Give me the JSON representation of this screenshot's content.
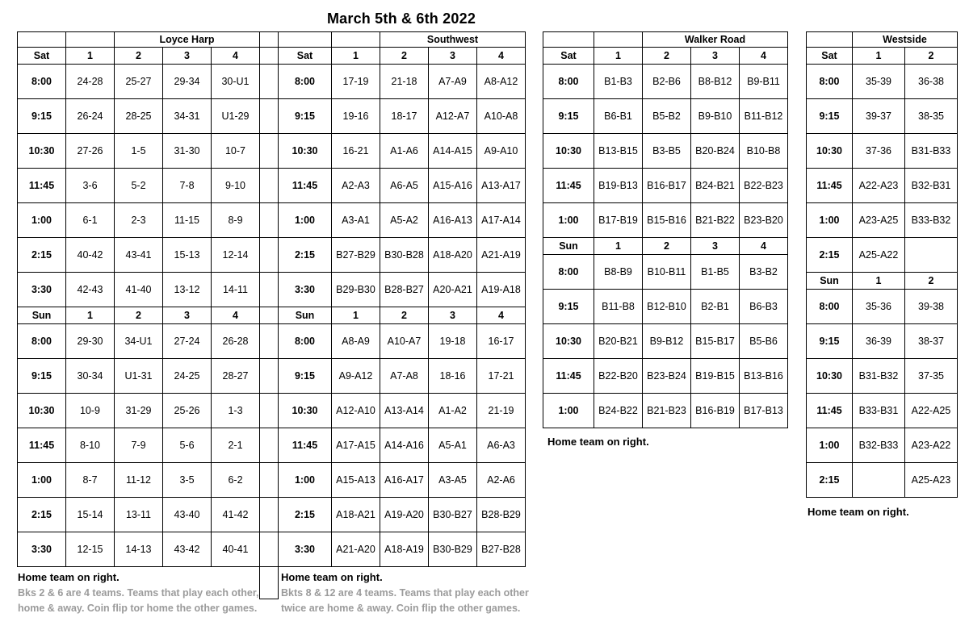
{
  "title": "March 5th & 6th 2022",
  "colors": {
    "background": "#ffffff",
    "border": "#000000",
    "text": "#000000",
    "gray_text": "#9b9b9b"
  },
  "venues": [
    {
      "name": "Loyce Harp",
      "courts": [
        "1",
        "2",
        "3",
        "4"
      ],
      "sections": [
        {
          "day": "Sat",
          "rows": [
            {
              "time": "8:00",
              "cells": [
                "24-28",
                "25-27",
                "29-34",
                "30-U1"
              ],
              "gray": [
                0,
                0,
                0,
                0
              ]
            },
            {
              "time": "9:15",
              "cells": [
                "26-24",
                "28-25",
                "34-31",
                "U1-29"
              ],
              "gray": [
                0,
                0,
                0,
                0
              ]
            },
            {
              "time": "10:30",
              "cells": [
                "27-26",
                "1-5",
                "31-30",
                "10-7"
              ],
              "gray": [
                0,
                0,
                0,
                1
              ]
            },
            {
              "time": "11:45",
              "cells": [
                "3-6",
                "5-2",
                "7-8",
                "9-10"
              ],
              "gray": [
                0,
                0,
                1,
                1
              ]
            },
            {
              "time": "1:00",
              "cells": [
                "6-1",
                "2-3",
                "11-15",
                "8-9"
              ],
              "gray": [
                0,
                0,
                0,
                1
              ]
            },
            {
              "time": "2:15",
              "cells": [
                "40-42",
                "43-41",
                "15-13",
                "12-14"
              ],
              "gray": [
                1,
                1,
                0,
                0
              ]
            },
            {
              "time": "3:30",
              "cells": [
                "42-43",
                "41-40",
                "13-12",
                "14-11"
              ],
              "gray": [
                1,
                1,
                0,
                0
              ]
            }
          ]
        },
        {
          "day": "Sun",
          "rows": [
            {
              "time": "8:00",
              "cells": [
                "29-30",
                "34-U1",
                "27-24",
                "26-28"
              ],
              "gray": [
                0,
                0,
                0,
                0
              ]
            },
            {
              "time": "9:15",
              "cells": [
                "30-34",
                "U1-31",
                "24-25",
                "28-27"
              ],
              "gray": [
                0,
                0,
                0,
                0
              ]
            },
            {
              "time": "10:30",
              "cells": [
                "10-9",
                "31-29",
                "25-26",
                "1-3"
              ],
              "gray": [
                1,
                0,
                0,
                0
              ]
            },
            {
              "time": "11:45",
              "cells": [
                "8-10",
                "7-9",
                "5-6",
                "2-1"
              ],
              "gray": [
                1,
                1,
                0,
                0
              ]
            },
            {
              "time": "1:00",
              "cells": [
                "8-7",
                "11-12",
                "3-5",
                "6-2"
              ],
              "gray": [
                1,
                0,
                0,
                0
              ]
            },
            {
              "time": "2:15",
              "cells": [
                "15-14",
                "13-11",
                "43-40",
                "41-42"
              ],
              "gray": [
                0,
                0,
                1,
                1
              ]
            },
            {
              "time": "3:30",
              "cells": [
                "12-15",
                "14-13",
                "43-42",
                "40-41"
              ],
              "gray": [
                0,
                0,
                1,
                1
              ]
            }
          ]
        }
      ],
      "footer_bold": "Home team on right.",
      "footer_notes": [
        "Bks 2 & 6 are 4 teams. Teams that play each other,",
        "home & away. Coin flip tor home the other games."
      ]
    },
    {
      "name": "Southwest",
      "courts": [
        "1",
        "2",
        "3",
        "4"
      ],
      "sections": [
        {
          "day": "Sat",
          "rows": [
            {
              "time": "8:00",
              "cells": [
                "17-19",
                "21-18",
                "A7-A9",
                "A8-A12"
              ],
              "gray": [
                0,
                0,
                0,
                0
              ]
            },
            {
              "time": "9:15",
              "cells": [
                "19-16",
                "18-17",
                "A12-A7",
                "A10-A8"
              ],
              "gray": [
                0,
                0,
                0,
                0
              ]
            },
            {
              "time": "10:30",
              "cells": [
                "16-21",
                "A1-A6",
                "A14-A15",
                "A9-A10"
              ],
              "gray": [
                0,
                0,
                0,
                0
              ]
            },
            {
              "time": "11:45",
              "cells": [
                "A2-A3",
                "A6-A5",
                "A15-A16",
                "A13-A17"
              ],
              "gray": [
                0,
                0,
                0,
                0
              ]
            },
            {
              "time": "1:00",
              "cells": [
                "A3-A1",
                "A5-A2",
                "A16-A13",
                "A17-A14"
              ],
              "gray": [
                0,
                0,
                0,
                0
              ]
            },
            {
              "time": "2:15",
              "cells": [
                "B27-B29",
                "B30-B28",
                "A18-A20",
                "A21-A19"
              ],
              "gray": [
                1,
                1,
                1,
                1
              ]
            },
            {
              "time": "3:30",
              "cells": [
                "B29-B30",
                "B28-B27",
                "A20-A21",
                "A19-A18"
              ],
              "gray": [
                1,
                1,
                1,
                1
              ]
            }
          ]
        },
        {
          "day": "Sun",
          "rows": [
            {
              "time": "8:00",
              "cells": [
                "A8-A9",
                "A10-A7",
                "19-18",
                "16-17"
              ],
              "gray": [
                0,
                0,
                0,
                0
              ]
            },
            {
              "time": "9:15",
              "cells": [
                "A9-A12",
                "A7-A8",
                "18-16",
                "17-21"
              ],
              "gray": [
                0,
                0,
                0,
                0
              ]
            },
            {
              "time": "10:30",
              "cells": [
                "A12-A10",
                "A13-A14",
                "A1-A2",
                "21-19"
              ],
              "gray": [
                0,
                0,
                0,
                0
              ]
            },
            {
              "time": "11:45",
              "cells": [
                "A17-A15",
                "A14-A16",
                "A5-A1",
                "A6-A3"
              ],
              "gray": [
                0,
                0,
                0,
                0
              ]
            },
            {
              "time": "1:00",
              "cells": [
                "A15-A13",
                "A16-A17",
                "A3-A5",
                "A2-A6"
              ],
              "gray": [
                0,
                0,
                0,
                0
              ]
            },
            {
              "time": "2:15",
              "cells": [
                "A18-A21",
                "A19-A20",
                "B30-B27",
                "B28-B29"
              ],
              "gray": [
                1,
                1,
                1,
                1
              ]
            },
            {
              "time": "3:30",
              "cells": [
                "A21-A20",
                "A18-A19",
                "B30-B29",
                "B27-B28"
              ],
              "gray": [
                1,
                1,
                1,
                1
              ]
            }
          ]
        }
      ],
      "footer_bold": "Home team on right.",
      "footer_notes": [
        "Bkts 8 & 12 are 4 teams. Teams that play each other",
        "twice are home & away. Coin flip the other games."
      ]
    },
    {
      "name": "Walker Road",
      "courts": [
        "1",
        "2",
        "3",
        "4"
      ],
      "sections": [
        {
          "day": "Sat",
          "rows": [
            {
              "time": "8:00",
              "cells": [
                "B1-B3",
                "B2-B6",
                "B8-B12",
                "B9-B11"
              ],
              "gray": [
                0,
                0,
                0,
                0
              ]
            },
            {
              "time": "9:15",
              "cells": [
                "B6-B1",
                "B5-B2",
                "B9-B10",
                "B11-B12"
              ],
              "gray": [
                0,
                0,
                0,
                0
              ]
            },
            {
              "time": "10:30",
              "cells": [
                "B13-B15",
                "B3-B5",
                "B20-B24",
                "B10-B8"
              ],
              "gray": [
                0,
                0,
                0,
                0
              ]
            },
            {
              "time": "11:45",
              "cells": [
                "B19-B13",
                "B16-B17",
                "B24-B21",
                "B22-B23"
              ],
              "gray": [
                0,
                0,
                0,
                0
              ]
            },
            {
              "time": "1:00",
              "cells": [
                "B17-B19",
                "B15-B16",
                "B21-B22",
                "B23-B20"
              ],
              "gray": [
                0,
                0,
                0,
                0
              ]
            }
          ]
        },
        {
          "day": "Sun",
          "rows": [
            {
              "time": "8:00",
              "cells": [
                "B8-B9",
                "B10-B11",
                "B1-B5",
                "B3-B2"
              ],
              "gray": [
                0,
                0,
                0,
                0
              ]
            },
            {
              "time": "9:15",
              "cells": [
                "B11-B8",
                "B12-B10",
                "B2-B1",
                "B6-B3"
              ],
              "gray": [
                0,
                0,
                0,
                0
              ]
            },
            {
              "time": "10:30",
              "cells": [
                "B20-B21",
                "B9-B12",
                "B15-B17",
                "B5-B6"
              ],
              "gray": [
                0,
                0,
                0,
                0
              ]
            },
            {
              "time": "11:45",
              "cells": [
                "B22-B20",
                "B23-B24",
                "B19-B15",
                "B13-B16"
              ],
              "gray": [
                0,
                0,
                0,
                0
              ]
            },
            {
              "time": "1:00",
              "cells": [
                "B24-B22",
                "B21-B23",
                "B16-B19",
                "B17-B13"
              ],
              "gray": [
                0,
                0,
                0,
                0
              ]
            }
          ]
        }
      ],
      "footer_bold": "Home team on right.",
      "footer_notes": []
    },
    {
      "name": "Westside",
      "courts": [
        "1",
        "2"
      ],
      "sections": [
        {
          "day": "Sat",
          "rows": [
            {
              "time": "8:00",
              "cells": [
                "35-39",
                "36-38"
              ],
              "gray": [
                0,
                0
              ]
            },
            {
              "time": "9:15",
              "cells": [
                "39-37",
                "38-35"
              ],
              "gray": [
                0,
                0
              ]
            },
            {
              "time": "10:30",
              "cells": [
                "37-36",
                "B31-B33"
              ],
              "gray": [
                0,
                0
              ]
            },
            {
              "time": "11:45",
              "cells": [
                "A22-A23",
                "B32-B31"
              ],
              "gray": [
                0,
                0
              ]
            },
            {
              "time": "1:00",
              "cells": [
                "A23-A25",
                "B33-B32"
              ],
              "gray": [
                0,
                0
              ]
            },
            {
              "time": "2:15",
              "cells": [
                "A25-A22",
                ""
              ],
              "gray": [
                0,
                0
              ]
            }
          ]
        },
        {
          "day": "Sun",
          "rows": [
            {
              "time": "8:00",
              "cells": [
                "35-36",
                "39-38"
              ],
              "gray": [
                0,
                0
              ]
            },
            {
              "time": "9:15",
              "cells": [
                "36-39",
                "38-37"
              ],
              "gray": [
                0,
                0
              ]
            },
            {
              "time": "10:30",
              "cells": [
                "B31-B32",
                "37-35"
              ],
              "gray": [
                0,
                0
              ]
            },
            {
              "time": "11:45",
              "cells": [
                "B33-B31",
                "A22-A25"
              ],
              "gray": [
                0,
                0
              ]
            },
            {
              "time": "1:00",
              "cells": [
                "B32-B33",
                "A23-A22"
              ],
              "gray": [
                0,
                0
              ]
            },
            {
              "time": "2:15",
              "cells": [
                "",
                "A25-A23"
              ],
              "gray": [
                0,
                0
              ]
            }
          ]
        }
      ],
      "footer_bold": "Home team on right.",
      "footer_notes": []
    }
  ]
}
